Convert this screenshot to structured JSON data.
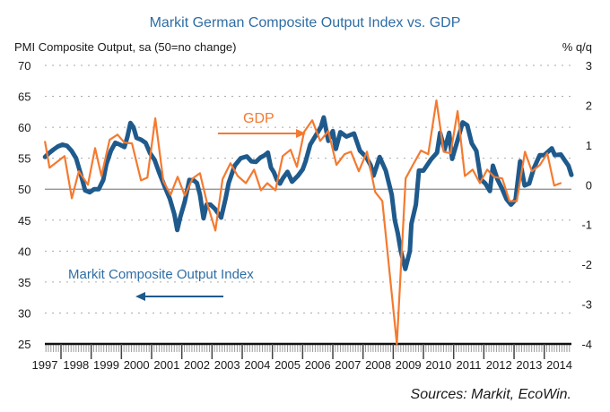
{
  "chart_data": {
    "type": "line",
    "title": "Markit German Composite Output Index vs. GDP",
    "ylabel_left": "PMI Composite Output, sa (50=no change)",
    "ylabel_right": "% q/q",
    "source": "Sources: Markit, EcoWin.",
    "xlim": [
      1997.47,
      2014.9
    ],
    "ylim_left": [
      25,
      70
    ],
    "ylim_right": [
      -4,
      3
    ],
    "yticks_left": [
      "70",
      "65",
      "60",
      "55",
      "50",
      "45",
      "40",
      "35",
      "30",
      "25"
    ],
    "yticks_right": [
      "3",
      "2",
      "1",
      "0",
      "-1",
      "-2",
      "-3",
      "-4"
    ],
    "x_tick_labels": [
      "1997",
      "1998",
      "1999",
      "2000",
      "2001",
      "2002",
      "2003",
      "2004",
      "2005",
      "2006",
      "2007",
      "2008",
      "2009",
      "2010",
      "2011",
      "2012",
      "2013",
      "2014"
    ],
    "grid": true,
    "annotations": [
      {
        "text": "GDP",
        "series": "GDP",
        "arrow": "right"
      },
      {
        "text": "Markit Composite Output Index",
        "series": "Markit Composite Output Index",
        "arrow": "left"
      }
    ],
    "series": [
      {
        "name": "Markit Composite Output Index",
        "axis": "left",
        "color": "#1f5a8c",
        "points": [
          [
            1997.47,
            55.2
          ],
          [
            1997.6,
            55.8
          ],
          [
            1997.75,
            56.4
          ],
          [
            1997.9,
            56.9
          ],
          [
            1998.05,
            57.2
          ],
          [
            1998.2,
            57.0
          ],
          [
            1998.35,
            56.2
          ],
          [
            1998.5,
            55.0
          ],
          [
            1998.65,
            52.5
          ],
          [
            1998.8,
            49.8
          ],
          [
            1998.95,
            49.5
          ],
          [
            1999.1,
            50.0
          ],
          [
            1999.25,
            50.0
          ],
          [
            1999.4,
            51.5
          ],
          [
            1999.5,
            54.0
          ],
          [
            1999.65,
            56.2
          ],
          [
            1999.8,
            57.5
          ],
          [
            1999.95,
            57.2
          ],
          [
            2000.1,
            56.8
          ],
          [
            2000.2,
            58.5
          ],
          [
            2000.3,
            60.7
          ],
          [
            2000.4,
            60.0
          ],
          [
            2000.5,
            58.3
          ],
          [
            2000.65,
            58.0
          ],
          [
            2000.8,
            57.5
          ],
          [
            2000.95,
            55.8
          ],
          [
            2001.1,
            54.7
          ],
          [
            2001.25,
            52.7
          ],
          [
            2001.45,
            50.2
          ],
          [
            2001.6,
            48.5
          ],
          [
            2001.75,
            46.0
          ],
          [
            2001.85,
            43.4
          ],
          [
            2001.95,
            45.5
          ],
          [
            2002.1,
            48.0
          ],
          [
            2002.25,
            51.5
          ],
          [
            2002.4,
            51.4
          ],
          [
            2002.5,
            51.0
          ],
          [
            2002.6,
            49.1
          ],
          [
            2002.72,
            45.3
          ],
          [
            2002.82,
            47.5
          ],
          [
            2002.95,
            47.5
          ],
          [
            2003.1,
            46.8
          ],
          [
            2003.3,
            45.4
          ],
          [
            2003.45,
            48.5
          ],
          [
            2003.55,
            51.0
          ],
          [
            2003.75,
            53.8
          ],
          [
            2003.95,
            55.0
          ],
          [
            2004.15,
            55.3
          ],
          [
            2004.3,
            54.5
          ],
          [
            2004.45,
            54.4
          ],
          [
            2004.6,
            55.1
          ],
          [
            2004.75,
            55.5
          ],
          [
            2004.85,
            55.9
          ],
          [
            2004.95,
            53.5
          ],
          [
            2005.05,
            52.7
          ],
          [
            2005.15,
            51.5
          ],
          [
            2005.25,
            50.9
          ],
          [
            2005.35,
            51.8
          ],
          [
            2005.5,
            52.8
          ],
          [
            2005.65,
            51.2
          ],
          [
            2005.85,
            52.2
          ],
          [
            2006.0,
            53.2
          ],
          [
            2006.1,
            54.5
          ],
          [
            2006.25,
            57.2
          ],
          [
            2006.45,
            58.8
          ],
          [
            2006.6,
            60.0
          ],
          [
            2006.7,
            61.6
          ],
          [
            2006.85,
            57.8
          ],
          [
            2007.0,
            59.4
          ],
          [
            2007.1,
            56.5
          ],
          [
            2007.25,
            59.2
          ],
          [
            2007.45,
            58.5
          ],
          [
            2007.7,
            59.0
          ],
          [
            2007.9,
            56.2
          ],
          [
            2008.1,
            55.2
          ],
          [
            2008.25,
            53.9
          ],
          [
            2008.35,
            52.2
          ],
          [
            2008.55,
            55.2
          ],
          [
            2008.75,
            53.0
          ],
          [
            2008.95,
            49.1
          ],
          [
            2009.05,
            45.0
          ],
          [
            2009.15,
            42.9
          ],
          [
            2009.25,
            40.0
          ],
          [
            2009.4,
            37.1
          ],
          [
            2009.55,
            40.0
          ],
          [
            2009.6,
            44.4
          ],
          [
            2009.75,
            47.5
          ],
          [
            2009.85,
            53.0
          ],
          [
            2010.0,
            53.0
          ],
          [
            2010.25,
            54.8
          ],
          [
            2010.45,
            55.9
          ],
          [
            2010.55,
            59.1
          ],
          [
            2010.7,
            56.4
          ],
          [
            2010.85,
            59.1
          ],
          [
            2010.95,
            54.9
          ],
          [
            2011.1,
            57.4
          ],
          [
            2011.3,
            60.8
          ],
          [
            2011.45,
            60.3
          ],
          [
            2011.6,
            57.4
          ],
          [
            2011.75,
            56.2
          ],
          [
            2011.9,
            51.6
          ],
          [
            2012.05,
            50.9
          ],
          [
            2012.2,
            49.7
          ],
          [
            2012.3,
            53.8
          ],
          [
            2012.45,
            51.6
          ],
          [
            2012.6,
            50.1
          ],
          [
            2012.75,
            48.4
          ],
          [
            2012.9,
            47.5
          ],
          [
            2013.05,
            48.3
          ],
          [
            2013.2,
            54.5
          ],
          [
            2013.35,
            50.6
          ],
          [
            2013.5,
            50.9
          ],
          [
            2013.65,
            53.3
          ],
          [
            2013.85,
            55.5
          ],
          [
            2014.0,
            55.5
          ],
          [
            2014.25,
            56.6
          ],
          [
            2014.35,
            55.5
          ],
          [
            2014.55,
            55.6
          ],
          [
            2014.7,
            54.5
          ],
          [
            2014.8,
            53.8
          ],
          [
            2014.9,
            52.3
          ]
        ]
      },
      {
        "name": "GDP",
        "axis": "right",
        "color": "#f47a30",
        "points": [
          [
            1997.47,
            1.08
          ],
          [
            1997.62,
            0.43
          ],
          [
            1998.12,
            0.72
          ],
          [
            1998.36,
            -0.34
          ],
          [
            1998.59,
            0.34
          ],
          [
            1998.89,
            0.0
          ],
          [
            1999.13,
            0.92
          ],
          [
            1999.34,
            0.22
          ],
          [
            1999.61,
            1.13
          ],
          [
            1999.87,
            1.26
          ],
          [
            2000.1,
            1.06
          ],
          [
            2000.35,
            1.04
          ],
          [
            2000.65,
            0.11
          ],
          [
            2000.86,
            0.18
          ],
          [
            2001.12,
            1.67
          ],
          [
            2001.39,
            0.09
          ],
          [
            2001.63,
            -0.25
          ],
          [
            2001.86,
            0.2
          ],
          [
            2002.1,
            -0.27
          ],
          [
            2002.36,
            0.16
          ],
          [
            2002.6,
            0.29
          ],
          [
            2002.84,
            -0.47
          ],
          [
            2003.11,
            -1.15
          ],
          [
            2003.35,
            0.14
          ],
          [
            2003.61,
            0.54
          ],
          [
            2003.85,
            0.22
          ],
          [
            2004.12,
            0.04
          ],
          [
            2004.39,
            0.38
          ],
          [
            2004.62,
            -0.14
          ],
          [
            2004.83,
            0.04
          ],
          [
            2005.1,
            -0.14
          ],
          [
            2005.34,
            0.72
          ],
          [
            2005.6,
            0.88
          ],
          [
            2005.81,
            0.45
          ],
          [
            2006.05,
            1.33
          ],
          [
            2006.32,
            1.62
          ],
          [
            2006.58,
            1.1
          ],
          [
            2006.85,
            1.35
          ],
          [
            2007.12,
            0.5
          ],
          [
            2007.39,
            0.77
          ],
          [
            2007.6,
            0.83
          ],
          [
            2007.86,
            0.34
          ],
          [
            2008.13,
            0.83
          ],
          [
            2008.4,
            -0.18
          ],
          [
            2008.64,
            -0.41
          ],
          [
            2009.12,
            -4.0
          ],
          [
            2009.41,
            0.16
          ],
          [
            2009.65,
            0.5
          ],
          [
            2009.92,
            0.86
          ],
          [
            2010.16,
            0.77
          ],
          [
            2010.43,
            2.12
          ],
          [
            2010.67,
            0.83
          ],
          [
            2010.9,
            0.79
          ],
          [
            2011.13,
            1.85
          ],
          [
            2011.37,
            0.22
          ],
          [
            2011.63,
            0.38
          ],
          [
            2011.87,
            0.04
          ],
          [
            2012.11,
            0.38
          ],
          [
            2012.34,
            0.2
          ],
          [
            2012.61,
            0.16
          ],
          [
            2012.85,
            -0.41
          ],
          [
            2013.09,
            -0.41
          ],
          [
            2013.36,
            0.83
          ],
          [
            2013.59,
            0.34
          ],
          [
            2013.86,
            0.5
          ],
          [
            2014.1,
            0.79
          ],
          [
            2014.33,
            -0.02
          ],
          [
            2014.54,
            0.04
          ]
        ]
      }
    ]
  }
}
